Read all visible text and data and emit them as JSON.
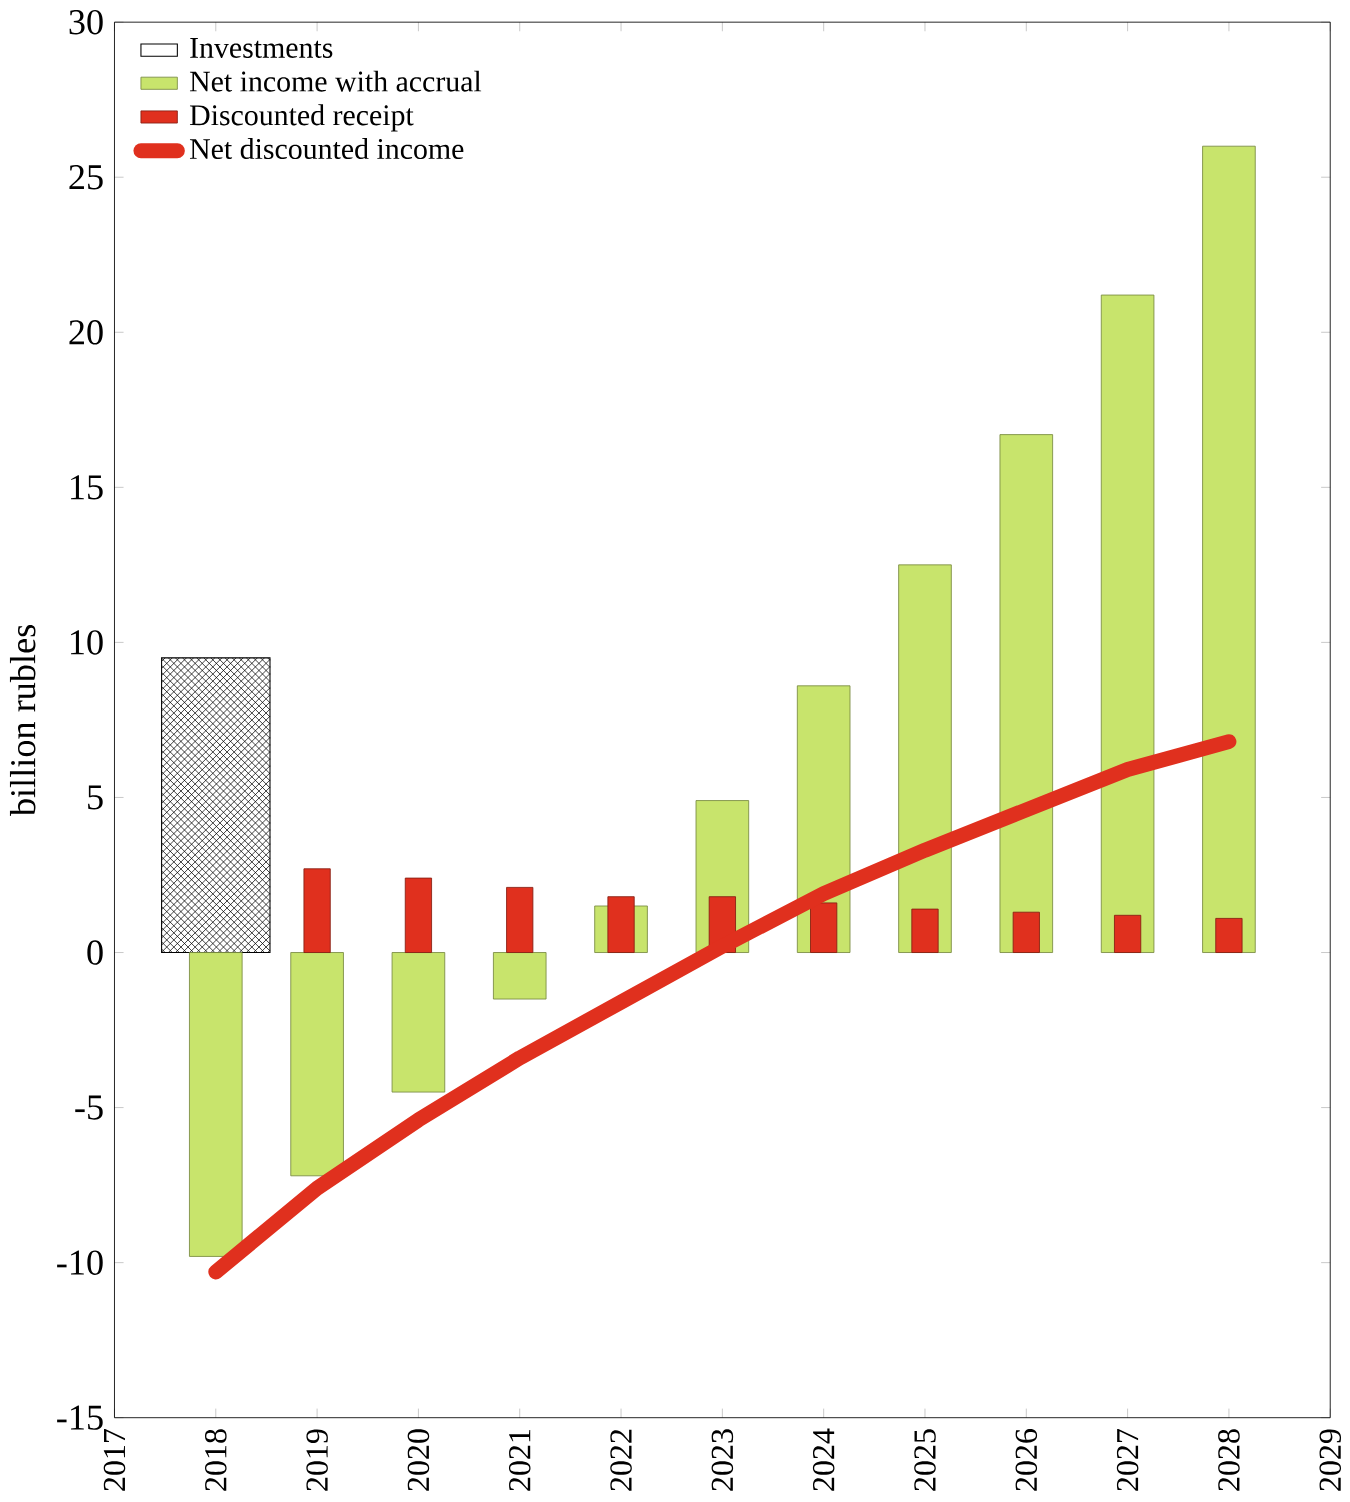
{
  "chart_data": {
    "type": "bar",
    "ylabel": "billion rubles",
    "x": [
      2018,
      2019,
      2020,
      2021,
      2022,
      2023,
      2024,
      2025,
      2026,
      2027,
      2028
    ],
    "series": [
      {
        "name": "Investments",
        "color": "#000000",
        "values": [
          9.5,
          null,
          null,
          null,
          null,
          null,
          null,
          null,
          null,
          null,
          null
        ]
      },
      {
        "name": "Net income with accrual",
        "color": "#c8e46c",
        "values": [
          -9.8,
          -7.2,
          -4.5,
          -1.5,
          1.5,
          4.9,
          8.6,
          12.5,
          16.7,
          21.2,
          26.0
        ]
      },
      {
        "name": "Discounted receipt",
        "color": "#e0301e",
        "values": [
          null,
          2.7,
          2.4,
          2.1,
          1.8,
          1.8,
          1.6,
          1.4,
          1.3,
          1.2,
          1.1
        ]
      },
      {
        "name": "Net discounted income",
        "type": "line",
        "color": "#e0301e",
        "values": [
          -10.3,
          -7.6,
          -5.4,
          -3.4,
          -1.6,
          0.2,
          1.9,
          3.3,
          4.6,
          5.9,
          6.8
        ]
      }
    ],
    "xlim": [
      2017,
      2029
    ],
    "xticks": [
      2017,
      2018,
      2019,
      2020,
      2021,
      2022,
      2023,
      2024,
      2025,
      2026,
      2027,
      2028,
      2029
    ],
    "ylim": [
      -15,
      30
    ],
    "yticks": [
      -15,
      -10,
      -5,
      0,
      5,
      10,
      15,
      20,
      25,
      30
    ],
    "grid": false,
    "legend": "top left"
  }
}
